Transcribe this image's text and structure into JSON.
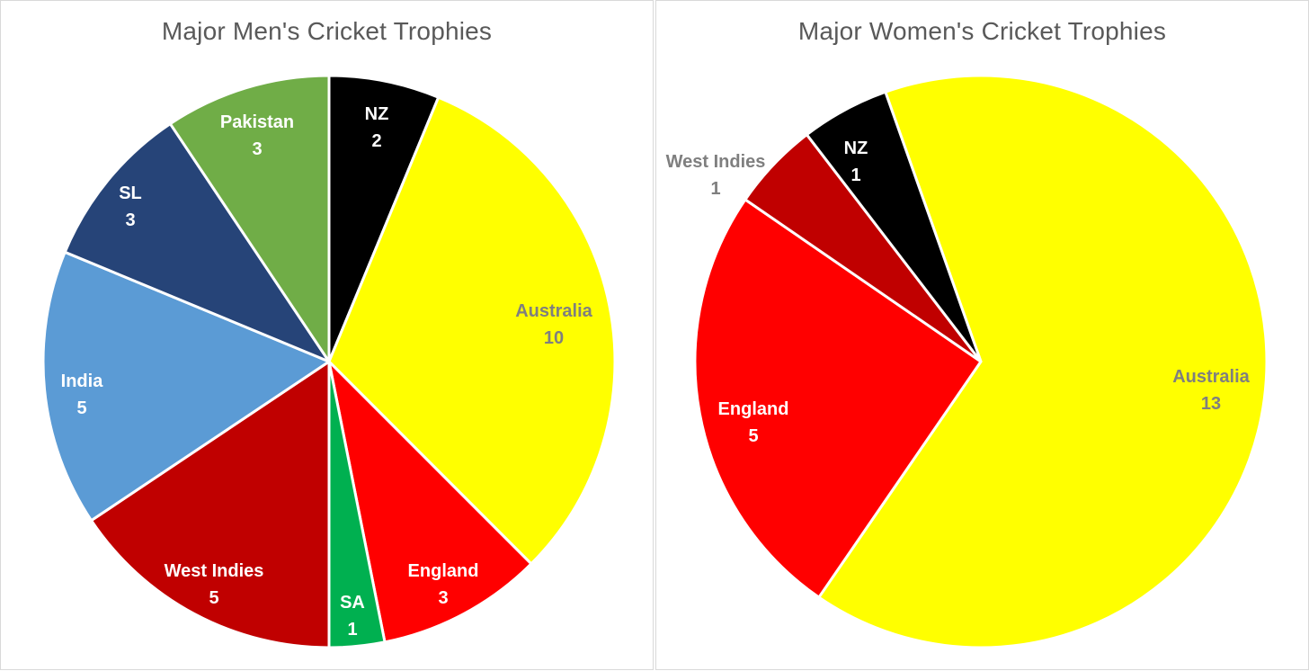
{
  "chart_data": [
    {
      "type": "pie",
      "title": "Major Men's Cricket Trophies",
      "slices": [
        {
          "label": "NZ",
          "value": 2,
          "color": "#000000",
          "text_color": "#ffffff"
        },
        {
          "label": "Australia",
          "value": 10,
          "color": "#ffff00",
          "text_color": "#7f7f7f"
        },
        {
          "label": "England",
          "value": 3,
          "color": "#ff0000",
          "text_color": "#ffffff"
        },
        {
          "label": "SA",
          "value": 1,
          "color": "#00b050",
          "text_color": "#ffffff"
        },
        {
          "label": "West Indies",
          "value": 5,
          "color": "#c00000",
          "text_color": "#ffffff"
        },
        {
          "label": "India",
          "value": 5,
          "color": "#5b9bd5",
          "text_color": "#ffffff"
        },
        {
          "label": "SL",
          "value": 3,
          "color": "#264478",
          "text_color": "#ffffff"
        },
        {
          "label": "Pakistan",
          "value": 3,
          "color": "#70ad47",
          "text_color": "#ffffff"
        }
      ]
    },
    {
      "type": "pie",
      "title": "Major Women's Cricket Trophies",
      "slices": [
        {
          "label": "Australia",
          "value": 13,
          "color": "#ffff00",
          "text_color": "#7f7f7f"
        },
        {
          "label": "England",
          "value": 5,
          "color": "#ff0000",
          "text_color": "#ffffff"
        },
        {
          "label": "West Indies",
          "value": 1,
          "color": "#c00000",
          "text_color": "#7f7f7f"
        },
        {
          "label": "NZ",
          "value": 1,
          "color": "#000000",
          "text_color": "#ffffff"
        }
      ]
    }
  ]
}
